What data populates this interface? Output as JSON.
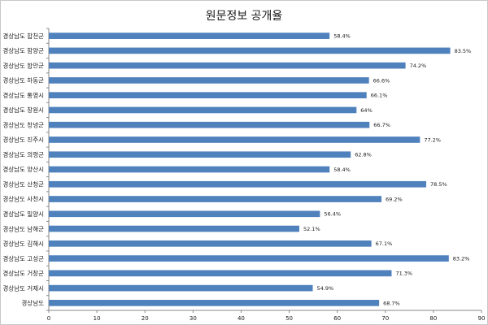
{
  "chart_data": {
    "type": "bar",
    "orientation": "horizontal",
    "title": "원문정보 공개율",
    "categories": [
      "경상남도 합천군",
      "경상남도 함양군",
      "경상남도 함안군",
      "경상남도 하동군",
      "경상남도 통영시",
      "경상남도 창원시",
      "경상남도 창녕군",
      "경상남도 진주시",
      "경상남도 의령군",
      "경상남도 양산시",
      "경상남도 산청군",
      "경상남도 사천시",
      "경상남도 밀양시",
      "경상남도 남해군",
      "경상남도 김해시",
      "경상남도 고성군",
      "경상남도 거창군",
      "경상남도 거제시",
      "경상남도"
    ],
    "values": [
      58.4,
      83.5,
      74.2,
      66.6,
      66.1,
      64,
      66.7,
      77.2,
      62.8,
      58.4,
      78.5,
      69.2,
      56.4,
      52.1,
      67.1,
      83.2,
      71.3,
      54.9,
      68.7
    ],
    "value_labels": [
      "58.4%",
      "83.5%",
      "74.2%",
      "66.6%",
      "66.1%",
      "64%",
      "66.7%",
      "77.2%",
      "62.8%",
      "58.4%",
      "78.5%",
      "69.2%",
      "56.4%",
      "52.1%",
      "67.1%",
      "83.2%",
      "71.3%",
      "54.9%",
      "68.7%"
    ],
    "xlim": [
      0,
      90
    ],
    "xticks": [
      0,
      10,
      20,
      30,
      40,
      50,
      60,
      70,
      80,
      90
    ],
    "grid": false,
    "legend": "none",
    "bar_color": "#4f81bd"
  }
}
